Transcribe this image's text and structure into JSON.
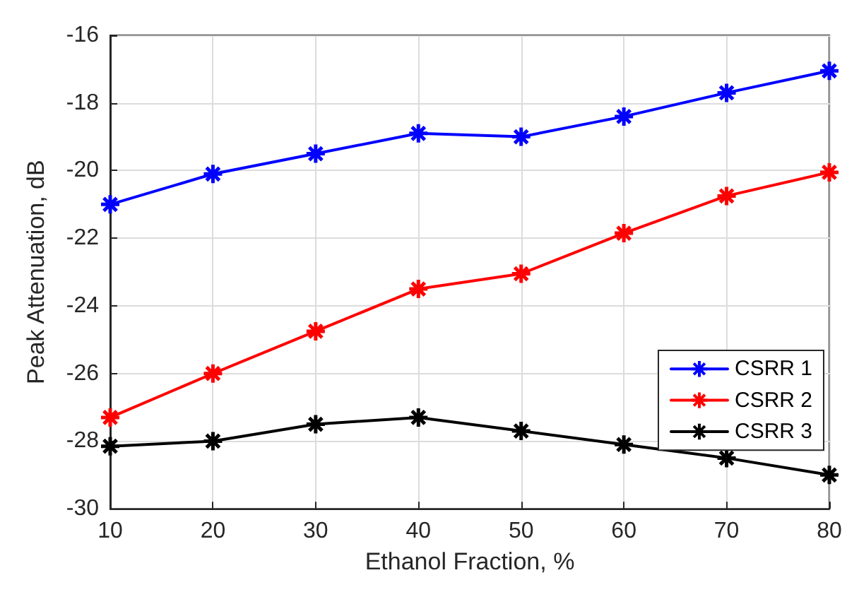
{
  "chart_data": {
    "type": "line",
    "xlabel": "Ethanol Fraction, %",
    "ylabel": "Peak Attenuation, dB",
    "x": [
      10,
      20,
      30,
      40,
      50,
      60,
      70,
      80
    ],
    "series": [
      {
        "name": "CSRR 1",
        "color": "#0000ff",
        "values": [
          -21.0,
          -20.1,
          -19.5,
          -18.9,
          -19.0,
          -18.4,
          -17.7,
          -17.05
        ]
      },
      {
        "name": "CSRR 2",
        "color": "#ff0000",
        "values": [
          -27.3,
          -26.0,
          -24.75,
          -23.5,
          -23.05,
          -21.85,
          -20.75,
          -20.05
        ]
      },
      {
        "name": "CSRR 3",
        "color": "#000000",
        "values": [
          -28.15,
          -28.0,
          -27.5,
          -27.3,
          -27.7,
          -28.1,
          -28.5,
          -29.0
        ]
      }
    ],
    "xlim": [
      10,
      80
    ],
    "xticks": [
      10,
      20,
      30,
      40,
      50,
      60,
      70,
      80
    ],
    "ylim": [
      -30,
      -16
    ],
    "yticks": [
      -30,
      -28,
      -26,
      -24,
      -22,
      -20,
      -18,
      -16
    ],
    "grid": true,
    "legend": "right",
    "marker": "cross",
    "line_style": "solid"
  }
}
